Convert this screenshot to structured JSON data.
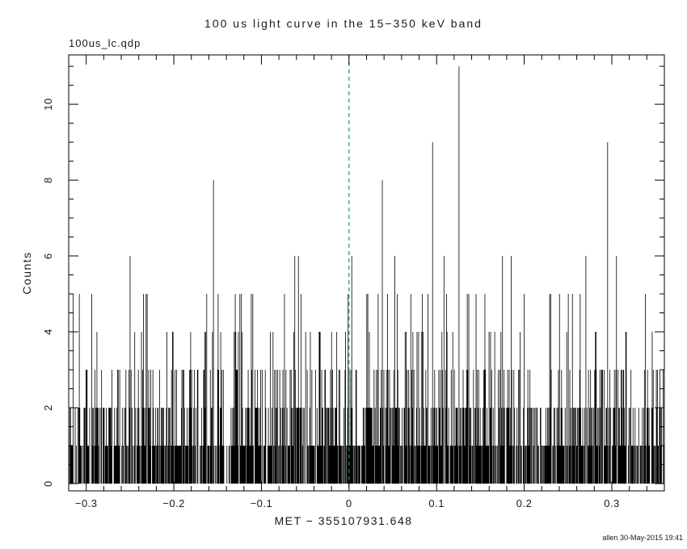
{
  "header": {
    "file_label": "100us_lc.qdp"
  },
  "footer": {
    "credit": "allen 30-May-2015 19:41"
  },
  "chart_data": {
    "type": "line",
    "title": "100 us light curve in the 15−350 keV band",
    "xlabel": "MET − 355107931.648",
    "ylabel": "Counts",
    "xlim": [
      -0.32,
      0.36
    ],
    "ylim": [
      0,
      11.3
    ],
    "x_ticks": [
      -0.3,
      -0.2,
      -0.1,
      0,
      0.1,
      0.2,
      0.3
    ],
    "x_tick_labels": [
      "−0.3",
      "−0.2",
      "−0.1",
      "0",
      "0.1",
      "0.2",
      "0.3"
    ],
    "x_minor_step": 0.02,
    "y_ticks": [
      0,
      2,
      4,
      6,
      8,
      10
    ],
    "y_tick_labels": [
      "0",
      "2",
      "4",
      "6",
      "8",
      "10"
    ],
    "y_minor_step": 0.5,
    "grid": false,
    "legend": "none",
    "marker_line": {
      "x": 0,
      "style": "dashed",
      "color": "#009a9a"
    },
    "colors": {
      "data": "#000000",
      "axes": "#000000"
    },
    "background_noise": {
      "distribution": "poisson",
      "mean": 1.5,
      "rendered_bins": 1150,
      "max_background_counts": 5
    },
    "peaks": [
      {
        "x": -0.315,
        "counts": 5
      },
      {
        "x": -0.25,
        "counts": 6
      },
      {
        "x": -0.235,
        "counts": 5
      },
      {
        "x": -0.155,
        "counts": 8
      },
      {
        "x": -0.13,
        "counts": 5
      },
      {
        "x": -0.125,
        "counts": 5
      },
      {
        "x": -0.11,
        "counts": 5
      },
      {
        "x": -0.062,
        "counts": 6
      },
      {
        "x": -0.058,
        "counts": 6
      },
      {
        "x": 0.003,
        "counts": 6
      },
      {
        "x": 0.038,
        "counts": 8
      },
      {
        "x": 0.052,
        "counts": 6
      },
      {
        "x": 0.083,
        "counts": 5
      },
      {
        "x": 0.095,
        "counts": 9
      },
      {
        "x": 0.108,
        "counts": 6
      },
      {
        "x": 0.125,
        "counts": 11
      },
      {
        "x": 0.135,
        "counts": 5
      },
      {
        "x": 0.145,
        "counts": 5
      },
      {
        "x": 0.155,
        "counts": 5
      },
      {
        "x": 0.175,
        "counts": 6
      },
      {
        "x": 0.185,
        "counts": 6
      },
      {
        "x": 0.2,
        "counts": 5
      },
      {
        "x": 0.23,
        "counts": 5
      },
      {
        "x": 0.25,
        "counts": 5
      },
      {
        "x": 0.27,
        "counts": 6
      },
      {
        "x": 0.295,
        "counts": 9
      },
      {
        "x": 0.305,
        "counts": 6
      }
    ]
  }
}
